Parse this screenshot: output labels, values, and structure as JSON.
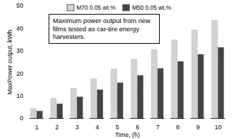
{
  "chart_data": {
    "type": "bar",
    "annotation": "Maximum power output from new films tested as car-tire energy harvesters.",
    "x_label": "Time, (h)",
    "y_label": "MaxPower output, kWh",
    "categories": [
      "1",
      "2",
      "3",
      "4",
      "5",
      "6",
      "7",
      "8",
      "9",
      "10"
    ],
    "series": [
      {
        "name": "M70 0.05 wt.%",
        "color": "#a8a8a8",
        "values": [
          4.3,
          8.7,
          13.1,
          17.4,
          21.8,
          26.1,
          30.4,
          34.8,
          39.1,
          43.5
        ]
      },
      {
        "name": "M50 0.05 wt.%",
        "color": "#3a3a3a",
        "values": [
          3.1,
          6.3,
          9.4,
          12.6,
          15.7,
          18.9,
          22.0,
          25.1,
          28.3,
          31.4
        ]
      }
    ],
    "ylim": [
      0,
      50
    ],
    "yticks": [
      0,
      10,
      20,
      30,
      40,
      50
    ],
    "grid": false,
    "legend": "top"
  }
}
